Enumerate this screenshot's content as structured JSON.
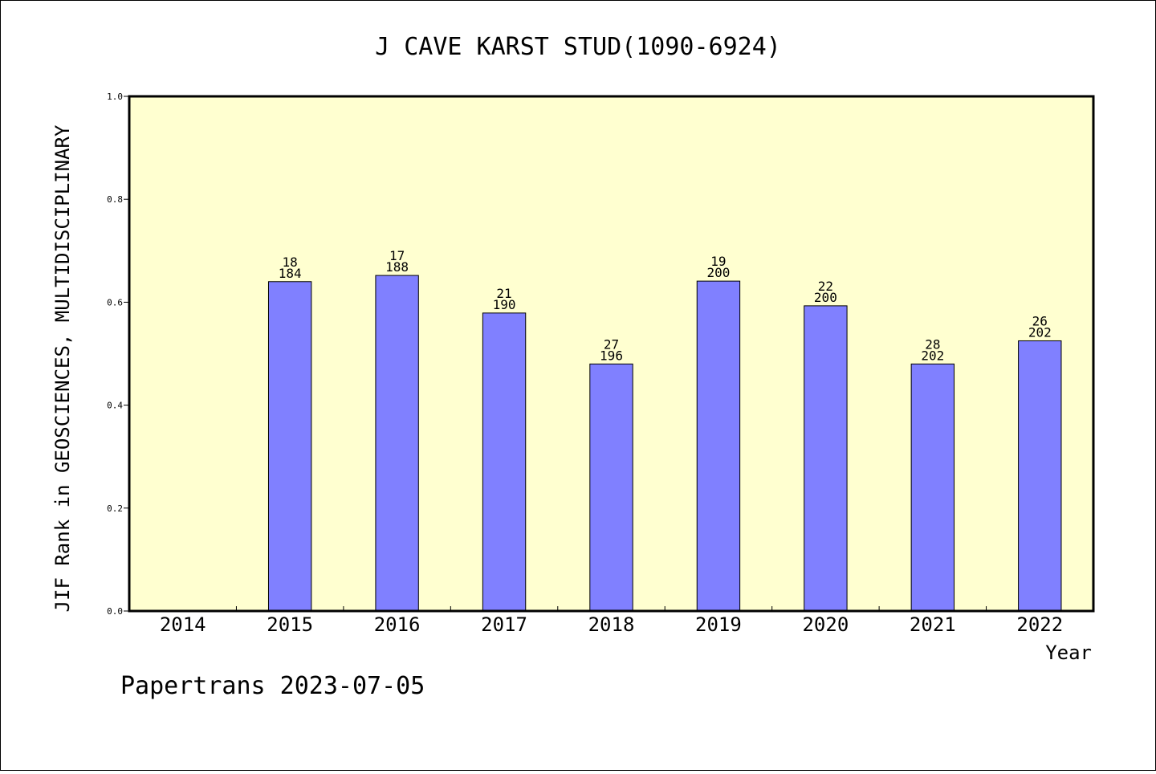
{
  "chart_data": {
    "type": "bar",
    "title": "J CAVE KARST STUD(1090-6924)",
    "xlabel": "Year",
    "ylabel": "JIF Rank in GEOSCIENCES, MULTIDISCIPLINARY",
    "categories": [
      "2014",
      "2015",
      "2016",
      "2017",
      "2018",
      "2019",
      "2020",
      "2021",
      "2022"
    ],
    "values": [
      null,
      0.64,
      0.652,
      0.579,
      0.48,
      0.641,
      0.593,
      0.48,
      0.525
    ],
    "rank": [
      null,
      "18",
      "17",
      "21",
      "27",
      "19",
      "22",
      "28",
      "26"
    ],
    "total": [
      null,
      "184",
      "188",
      "190",
      "196",
      "200",
      "200",
      "202",
      "202"
    ],
    "ylim": [
      0,
      1.0
    ],
    "yticks": [
      "0.0",
      "0.2",
      "0.4",
      "0.6",
      "0.8",
      "1.0"
    ],
    "grid": false,
    "colors": {
      "plot_background": "#ffffd0",
      "bar": "#8080ff",
      "axis": "#000000"
    }
  },
  "footer": "Papertrans 2023-07-05"
}
